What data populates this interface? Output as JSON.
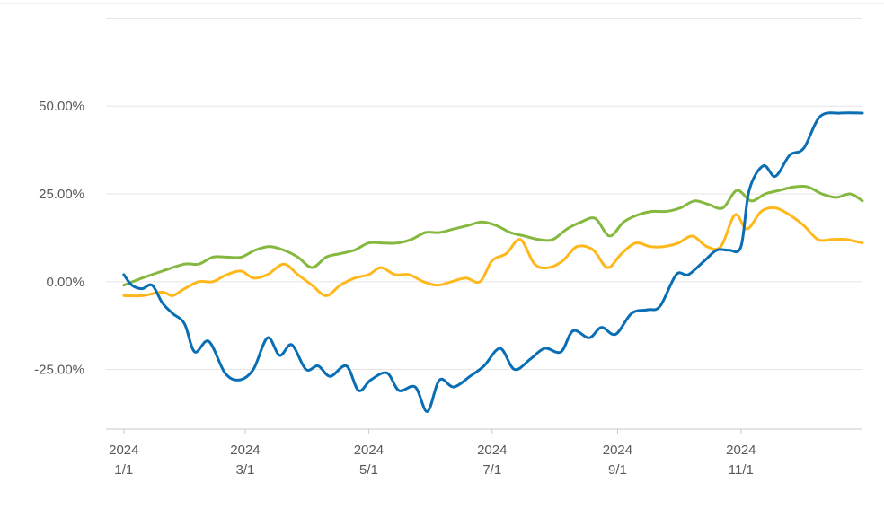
{
  "chart_data": {
    "type": "line",
    "title": "",
    "xlabel": "",
    "ylabel": "",
    "grid": true,
    "legend": "none",
    "x_range": [
      "2024-01-01",
      "2024-12-31"
    ],
    "ylim": [
      -42,
      70
    ],
    "y_ticks": [
      {
        "value": 50,
        "label": "50.00%"
      },
      {
        "value": 25,
        "label": "25.00%"
      },
      {
        "value": 0,
        "label": "0.00%"
      },
      {
        "value": -25,
        "label": "-25.00%"
      }
    ],
    "x_ticks": [
      {
        "date": "2024-01-01",
        "year": "2024",
        "label": "1/1"
      },
      {
        "date": "2024-03-01",
        "year": "2024",
        "label": "3/1"
      },
      {
        "date": "2024-05-01",
        "year": "2024",
        "label": "5/1"
      },
      {
        "date": "2024-07-01",
        "year": "2024",
        "label": "7/1"
      },
      {
        "date": "2024-09-01",
        "year": "2024",
        "label": "9/1"
      },
      {
        "date": "2024-11-01",
        "year": "2024",
        "label": "11/1"
      }
    ],
    "series": [
      {
        "color": "#0a6eb4",
        "points": [
          [
            "2024-01-01",
            2
          ],
          [
            "2024-01-05",
            -1
          ],
          [
            "2024-01-10",
            -2
          ],
          [
            "2024-01-15",
            -1
          ],
          [
            "2024-01-20",
            -6
          ],
          [
            "2024-01-25",
            -9
          ],
          [
            "2024-01-31",
            -12
          ],
          [
            "2024-02-05",
            -20
          ],
          [
            "2024-02-12",
            -17
          ],
          [
            "2024-02-20",
            -26
          ],
          [
            "2024-02-27",
            -28
          ],
          [
            "2024-03-05",
            -25
          ],
          [
            "2024-03-12",
            -16
          ],
          [
            "2024-03-18",
            -21
          ],
          [
            "2024-03-24",
            -18
          ],
          [
            "2024-03-31",
            -25
          ],
          [
            "2024-04-06",
            -24
          ],
          [
            "2024-04-12",
            -27
          ],
          [
            "2024-04-20",
            -24
          ],
          [
            "2024-04-26",
            -31
          ],
          [
            "2024-05-02",
            -28
          ],
          [
            "2024-05-10",
            -26
          ],
          [
            "2024-05-16",
            -31
          ],
          [
            "2024-05-24",
            -30
          ],
          [
            "2024-05-30",
            -37
          ],
          [
            "2024-06-05",
            -28
          ],
          [
            "2024-06-12",
            -30
          ],
          [
            "2024-06-20",
            -27
          ],
          [
            "2024-06-27",
            -24
          ],
          [
            "2024-07-05",
            -19
          ],
          [
            "2024-07-12",
            -25
          ],
          [
            "2024-07-20",
            -22
          ],
          [
            "2024-07-27",
            -19
          ],
          [
            "2024-08-04",
            -20
          ],
          [
            "2024-08-10",
            -14
          ],
          [
            "2024-08-18",
            -16
          ],
          [
            "2024-08-24",
            -13
          ],
          [
            "2024-08-31",
            -15
          ],
          [
            "2024-09-08",
            -9
          ],
          [
            "2024-09-16",
            -8
          ],
          [
            "2024-09-22",
            -7
          ],
          [
            "2024-09-30",
            2
          ],
          [
            "2024-10-06",
            2
          ],
          [
            "2024-10-14",
            6
          ],
          [
            "2024-10-20",
            9
          ],
          [
            "2024-10-26",
            9
          ],
          [
            "2024-11-01",
            10
          ],
          [
            "2024-11-05",
            26
          ],
          [
            "2024-11-12",
            33
          ],
          [
            "2024-11-18",
            30
          ],
          [
            "2024-11-25",
            36
          ],
          [
            "2024-12-02",
            38
          ],
          [
            "2024-12-10",
            47
          ],
          [
            "2024-12-20",
            48
          ],
          [
            "2024-12-31",
            48
          ]
        ]
      },
      {
        "color": "#ffb81c",
        "points": [
          [
            "2024-01-01",
            -4
          ],
          [
            "2024-01-10",
            -4
          ],
          [
            "2024-01-20",
            -3
          ],
          [
            "2024-01-25",
            -4
          ],
          [
            "2024-01-31",
            -2
          ],
          [
            "2024-02-07",
            0
          ],
          [
            "2024-02-14",
            0
          ],
          [
            "2024-02-21",
            2
          ],
          [
            "2024-02-28",
            3
          ],
          [
            "2024-03-05",
            1
          ],
          [
            "2024-03-12",
            2
          ],
          [
            "2024-03-20",
            5
          ],
          [
            "2024-03-27",
            2
          ],
          [
            "2024-04-03",
            -1
          ],
          [
            "2024-04-10",
            -4
          ],
          [
            "2024-04-17",
            -1
          ],
          [
            "2024-04-24",
            1
          ],
          [
            "2024-05-01",
            2
          ],
          [
            "2024-05-07",
            4
          ],
          [
            "2024-05-14",
            2
          ],
          [
            "2024-05-21",
            2
          ],
          [
            "2024-05-28",
            0
          ],
          [
            "2024-06-04",
            -1
          ],
          [
            "2024-06-11",
            0
          ],
          [
            "2024-06-18",
            1
          ],
          [
            "2024-06-25",
            0
          ],
          [
            "2024-07-01",
            6
          ],
          [
            "2024-07-08",
            8
          ],
          [
            "2024-07-15",
            12
          ],
          [
            "2024-07-22",
            5
          ],
          [
            "2024-07-29",
            4
          ],
          [
            "2024-08-05",
            6
          ],
          [
            "2024-08-12",
            10
          ],
          [
            "2024-08-20",
            9
          ],
          [
            "2024-08-27",
            4
          ],
          [
            "2024-09-03",
            8
          ],
          [
            "2024-09-10",
            11
          ],
          [
            "2024-09-17",
            10
          ],
          [
            "2024-09-24",
            10
          ],
          [
            "2024-10-01",
            11
          ],
          [
            "2024-10-08",
            13
          ],
          [
            "2024-10-15",
            10
          ],
          [
            "2024-10-22",
            10
          ],
          [
            "2024-10-29",
            19
          ],
          [
            "2024-11-04",
            15
          ],
          [
            "2024-11-11",
            20
          ],
          [
            "2024-11-18",
            21
          ],
          [
            "2024-11-25",
            19
          ],
          [
            "2024-12-02",
            16
          ],
          [
            "2024-12-09",
            12
          ],
          [
            "2024-12-16",
            12
          ],
          [
            "2024-12-23",
            12
          ],
          [
            "2024-12-31",
            11
          ]
        ]
      },
      {
        "color": "#84b83e",
        "points": [
          [
            "2024-01-01",
            -1
          ],
          [
            "2024-01-10",
            1
          ],
          [
            "2024-01-20",
            3
          ],
          [
            "2024-01-31",
            5
          ],
          [
            "2024-02-07",
            5
          ],
          [
            "2024-02-14",
            7
          ],
          [
            "2024-02-21",
            7
          ],
          [
            "2024-02-28",
            7
          ],
          [
            "2024-03-06",
            9
          ],
          [
            "2024-03-13",
            10
          ],
          [
            "2024-03-20",
            9
          ],
          [
            "2024-03-27",
            7
          ],
          [
            "2024-04-03",
            4
          ],
          [
            "2024-04-10",
            7
          ],
          [
            "2024-04-17",
            8
          ],
          [
            "2024-04-24",
            9
          ],
          [
            "2024-05-01",
            11
          ],
          [
            "2024-05-08",
            11
          ],
          [
            "2024-05-15",
            11
          ],
          [
            "2024-05-22",
            12
          ],
          [
            "2024-05-29",
            14
          ],
          [
            "2024-06-05",
            14
          ],
          [
            "2024-06-12",
            15
          ],
          [
            "2024-06-19",
            16
          ],
          [
            "2024-06-26",
            17
          ],
          [
            "2024-07-03",
            16
          ],
          [
            "2024-07-10",
            14
          ],
          [
            "2024-07-17",
            13
          ],
          [
            "2024-07-24",
            12
          ],
          [
            "2024-07-31",
            12
          ],
          [
            "2024-08-07",
            15
          ],
          [
            "2024-08-14",
            17
          ],
          [
            "2024-08-21",
            18
          ],
          [
            "2024-08-28",
            13
          ],
          [
            "2024-09-04",
            17
          ],
          [
            "2024-09-11",
            19
          ],
          [
            "2024-09-18",
            20
          ],
          [
            "2024-09-25",
            20
          ],
          [
            "2024-10-02",
            21
          ],
          [
            "2024-10-09",
            23
          ],
          [
            "2024-10-16",
            22
          ],
          [
            "2024-10-23",
            21
          ],
          [
            "2024-10-30",
            26
          ],
          [
            "2024-11-06",
            23
          ],
          [
            "2024-11-13",
            25
          ],
          [
            "2024-11-20",
            26
          ],
          [
            "2024-11-27",
            27
          ],
          [
            "2024-12-04",
            27
          ],
          [
            "2024-12-11",
            25
          ],
          [
            "2024-12-18",
            24
          ],
          [
            "2024-12-25",
            25
          ],
          [
            "2024-12-31",
            23
          ]
        ]
      }
    ]
  }
}
